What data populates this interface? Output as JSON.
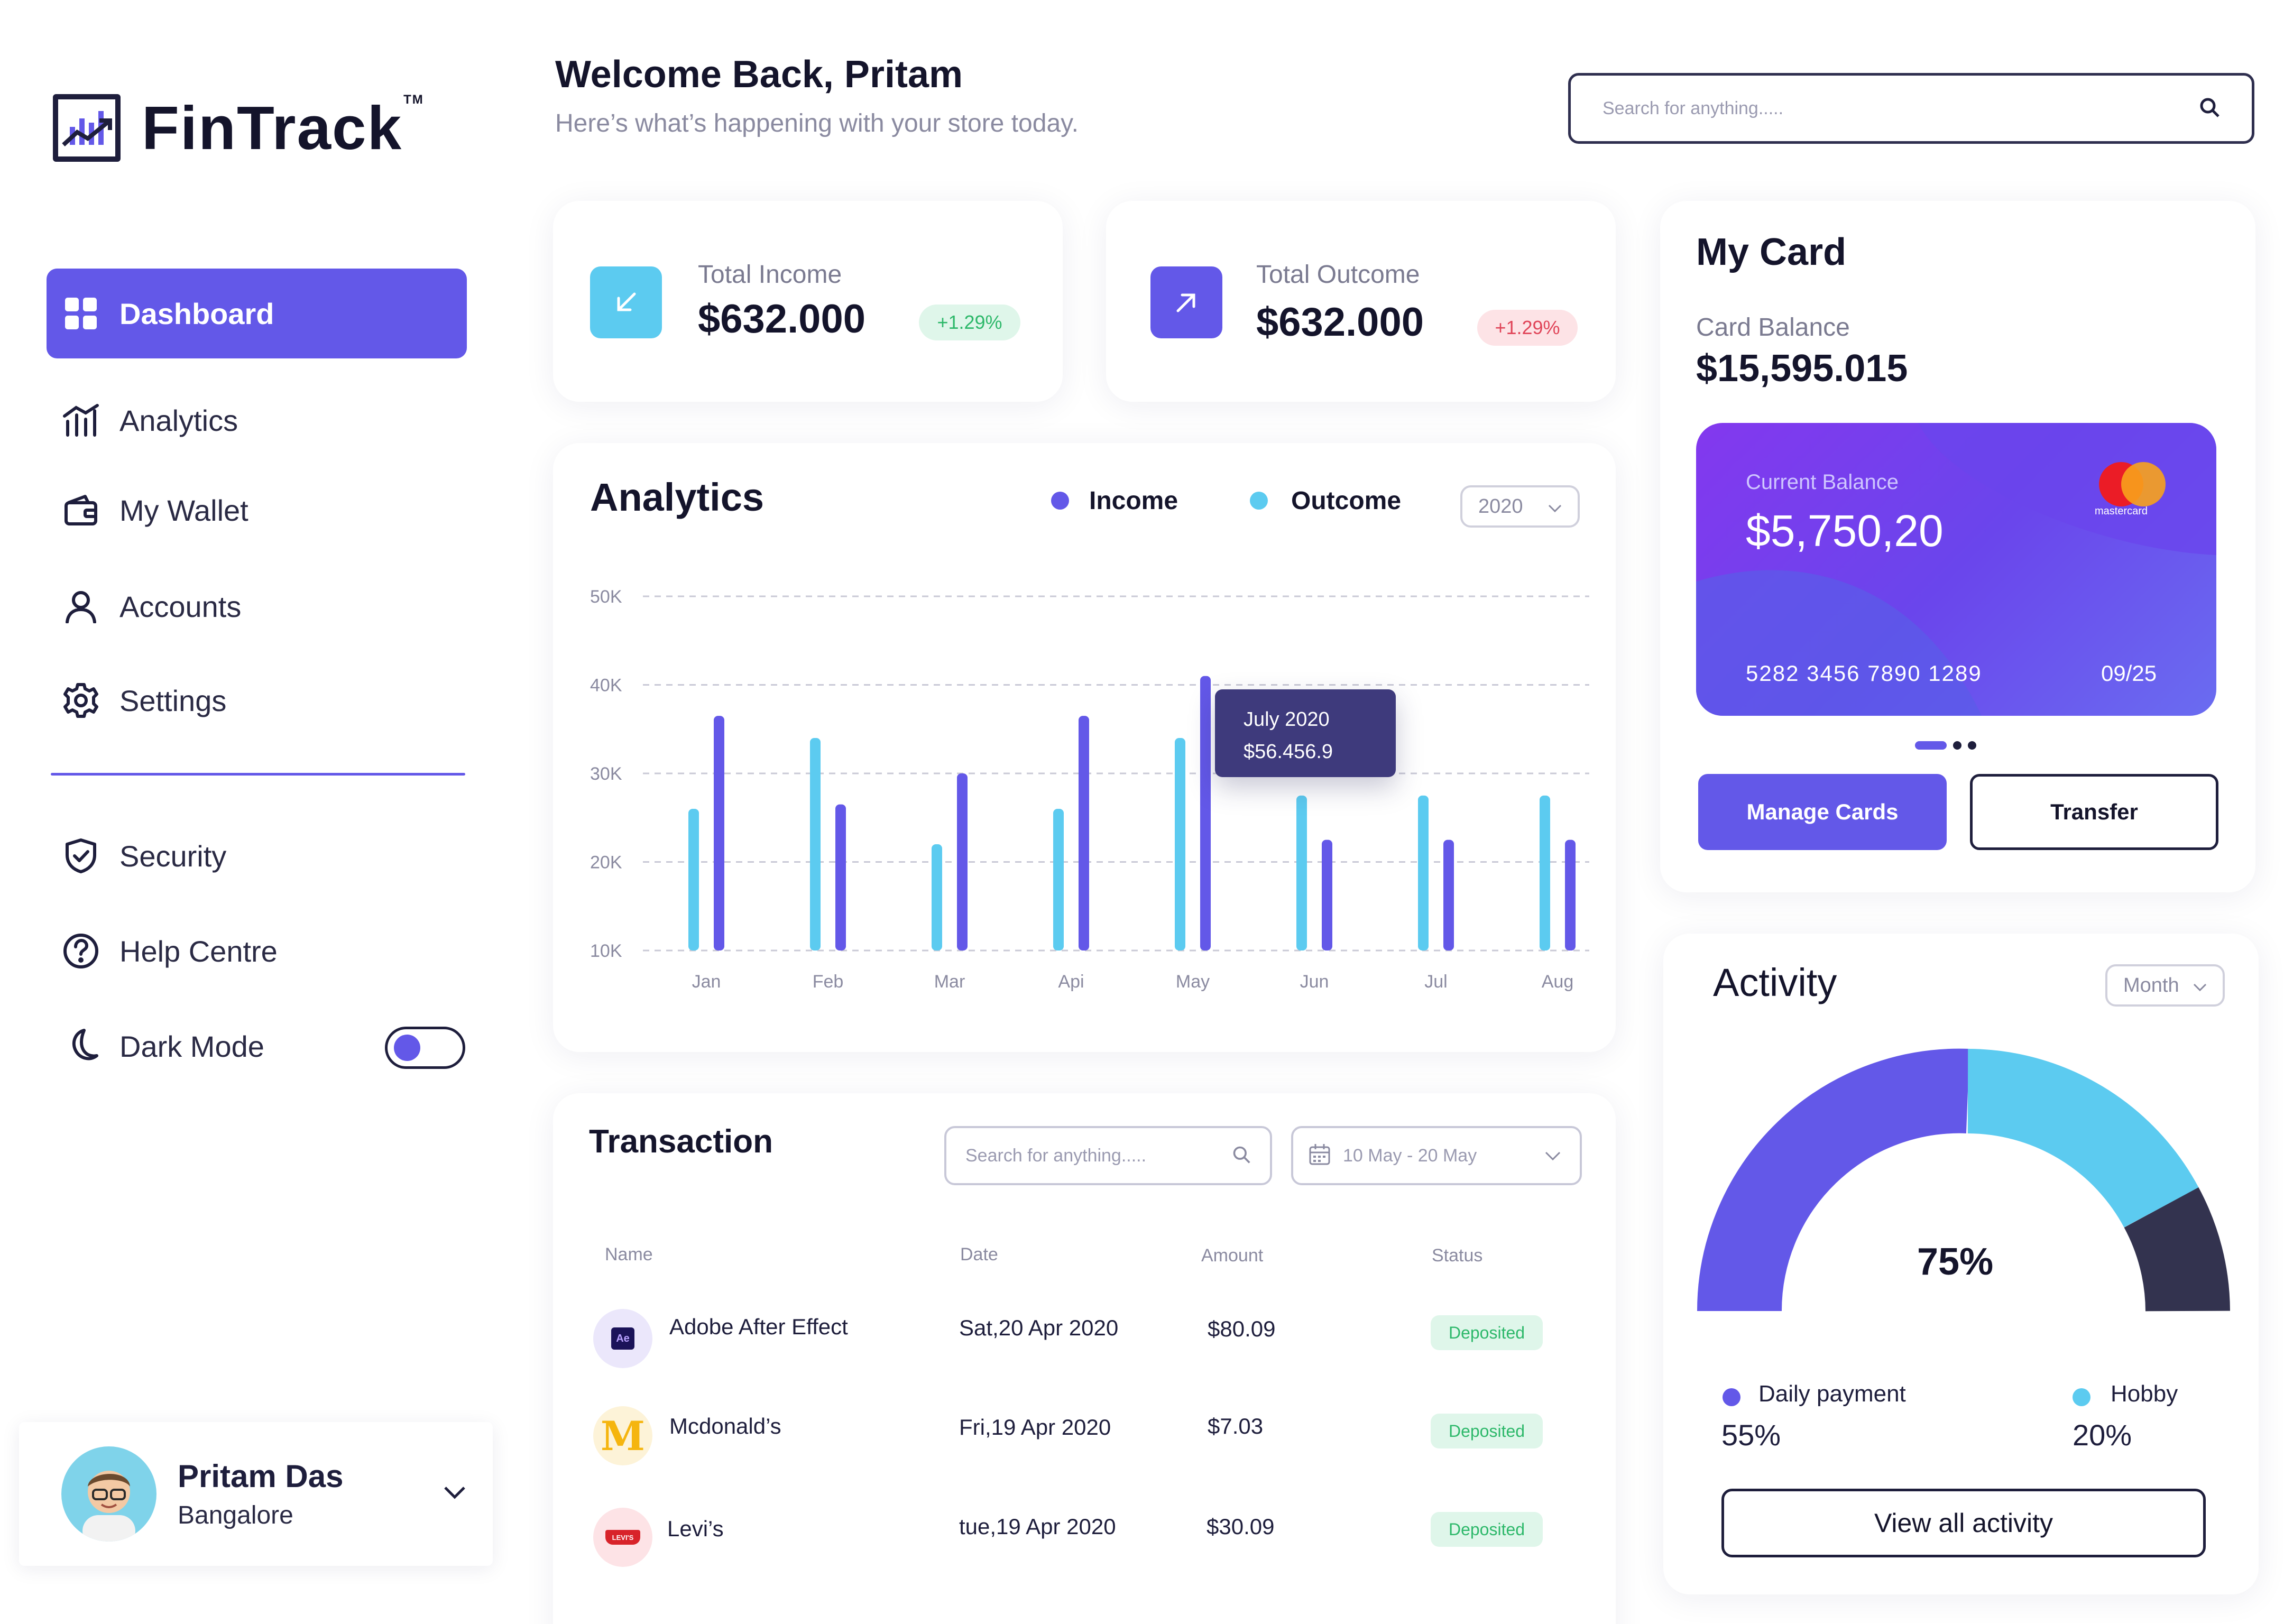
{
  "brand": {
    "name": "FinTrack",
    "tm": "TM"
  },
  "sidebar": {
    "items": [
      {
        "label": "Dashboard",
        "icon": "grid-icon",
        "active": true
      },
      {
        "label": "Analytics",
        "icon": "analytics-icon"
      },
      {
        "label": "My Wallet",
        "icon": "wallet-icon"
      },
      {
        "label": "Accounts",
        "icon": "user-icon"
      },
      {
        "label": "Settings",
        "icon": "gear-icon"
      }
    ],
    "secondary": [
      {
        "label": "Security",
        "icon": "shield-icon"
      },
      {
        "label": "Help Centre",
        "icon": "help-icon"
      },
      {
        "label": "Dark Mode",
        "icon": "moon-icon"
      }
    ]
  },
  "profile": {
    "name": "Pritam Das",
    "city": "Bangalore"
  },
  "header": {
    "title": "Welcome Back, Pritam",
    "subtitle": "Here’s what’s happening with your store today.",
    "search_placeholder": "Search for anything....."
  },
  "stats": {
    "income": {
      "label": "Total Income",
      "value": "$632.000",
      "change": "+1.29%"
    },
    "outcome": {
      "label": "Total Outcome",
      "value": "$632.000",
      "change": "+1.29%"
    }
  },
  "analytics": {
    "title": "Analytics",
    "legend_income": "Income",
    "legend_outcome": "Outcome",
    "year": "2020",
    "tooltip": {
      "title": "July 2020",
      "value": "$56.456.9"
    }
  },
  "chart_data": {
    "type": "bar",
    "categories": [
      "Jan",
      "Feb",
      "Mar",
      "Api",
      "May",
      "Jun",
      "Jul",
      "Aug"
    ],
    "series": [
      {
        "name": "Outcome",
        "color": "#5ccbf0",
        "values": [
          26,
          34,
          22,
          26,
          34,
          27.5,
          27.5,
          27.5
        ]
      },
      {
        "name": "Income",
        "color": "#6358e8",
        "values": [
          36.5,
          26.5,
          30,
          36.5,
          41,
          22.5,
          22.5,
          22.5
        ]
      }
    ],
    "yticks": [
      "10K",
      "20K",
      "30K",
      "40K",
      "50K"
    ],
    "ylim": [
      10,
      50
    ],
    "grid": true
  },
  "mycard": {
    "title": "My Card",
    "balance_label": "Card Balance",
    "balance_value": "$15,595.015",
    "current_label": "Current Balance",
    "current_value": "$5,750,20",
    "number": "5282 3456 7890 1289",
    "expiry": "09/25",
    "network": "mastercard",
    "manage_label": "Manage Cards",
    "transfer_label": "Transfer"
  },
  "transactions": {
    "title": "Transaction",
    "search_placeholder": "Search for anything.....",
    "date_range": "10 May - 20 May",
    "columns": [
      "Name",
      "Date",
      "Amount",
      "Status"
    ],
    "rows": [
      {
        "name": "Adobe After Effect",
        "date": "Sat,20 Apr 2020",
        "amount": "$80.09",
        "status": "Deposited",
        "logo": "Ae"
      },
      {
        "name": "Mcdonald’s",
        "date": "Fri,19 Apr 2020",
        "amount": "$7.03",
        "status": "Deposited",
        "logo": "M"
      },
      {
        "name": "Levi’s",
        "date": "tue,19 Apr 2020",
        "amount": "$30.09",
        "status": "Deposited",
        "logo": "LEVI'S"
      }
    ]
  },
  "activity": {
    "title": "Activity",
    "period": "Month",
    "percent": "75%",
    "gauge_value": 75,
    "items": [
      {
        "label": "Daily payment",
        "value": "55%",
        "color": "#6358e8"
      },
      {
        "label": "Hobby",
        "value": "20%",
        "color": "#5ccbf0"
      }
    ],
    "view_all": "View all activity"
  }
}
